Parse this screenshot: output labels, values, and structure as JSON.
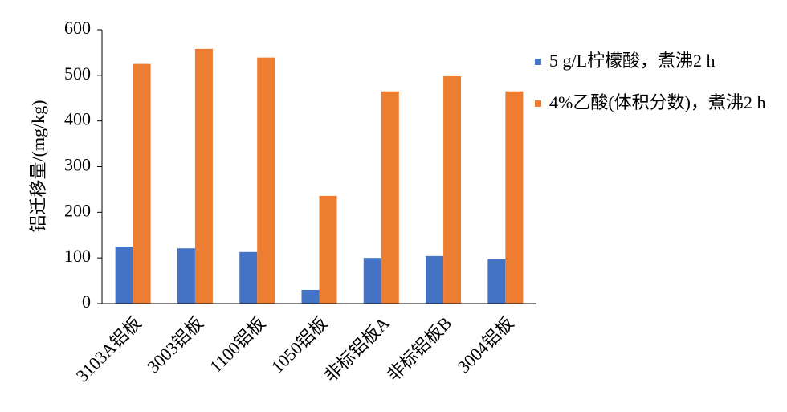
{
  "chart_data": {
    "type": "bar",
    "y_label": "铝迁移量/(mg/kg)",
    "categories": [
      "3103A铝板",
      "3003铝板",
      "1100铝板",
      "1050铝板",
      "非标铝板A",
      "非标铝板B",
      "3004铝板"
    ],
    "series": [
      {
        "name": "5 g/L柠檬酸，煮沸2 h",
        "color": "#4472c4",
        "values": [
          125,
          121,
          113,
          30,
          100,
          104,
          97
        ]
      },
      {
        "name": "4%乙酸(体积分数)，煮沸2 h",
        "color": "#ed7d31",
        "values": [
          525,
          558,
          539,
          236,
          465,
          498,
          465
        ]
      }
    ],
    "ylim": [
      0,
      600
    ],
    "yticks": [
      0,
      100,
      200,
      300,
      400,
      500,
      600
    ],
    "grid": false,
    "legend": "right"
  }
}
